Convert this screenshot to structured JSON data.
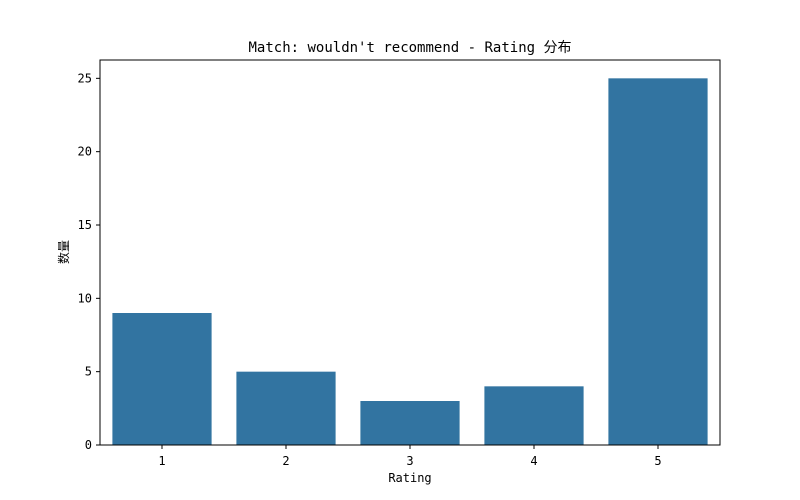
{
  "chart_data": {
    "type": "bar",
    "title": "Match: wouldn't recommend - Rating 分布",
    "xlabel": "Rating",
    "ylabel": "数量",
    "categories": [
      "1",
      "2",
      "3",
      "4",
      "5"
    ],
    "values": [
      9,
      5,
      3,
      4,
      25
    ],
    "ylim": [
      0,
      26.25
    ],
    "yticks": [
      0,
      5,
      10,
      15,
      20,
      25
    ],
    "grid": false,
    "bar_color": "#3274a1"
  }
}
